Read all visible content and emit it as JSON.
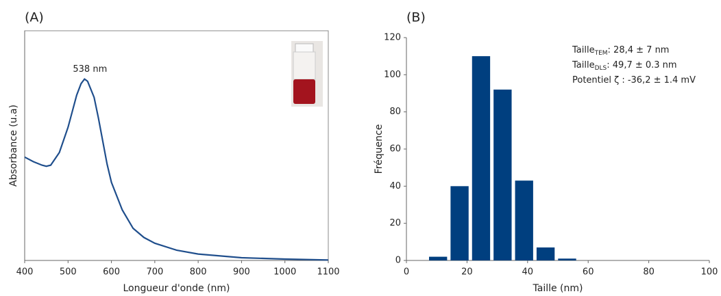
{
  "chart_data": [
    {
      "type": "line",
      "panel_label": "(A)",
      "x_label": "Longueur d'onde (nm)",
      "y_label": "Absorbance (u.a)",
      "annotation": "538 nm",
      "color": "#1f4e8c",
      "x": [
        400,
        420,
        440,
        450,
        460,
        480,
        500,
        510,
        520,
        530,
        538,
        545,
        560,
        570,
        580,
        590,
        600,
        625,
        650,
        675,
        700,
        750,
        800,
        900,
        1000,
        1100
      ],
      "values": [
        0.45,
        0.43,
        0.415,
        0.41,
        0.415,
        0.47,
        0.58,
        0.65,
        0.72,
        0.77,
        0.79,
        0.78,
        0.71,
        0.62,
        0.52,
        0.42,
        0.34,
        0.22,
        0.14,
        0.1,
        0.075,
        0.045,
        0.028,
        0.012,
        0.006,
        0.002
      ],
      "xlim": [
        400,
        1100
      ],
      "xticks": [
        400,
        500,
        600,
        700,
        800,
        900,
        1000,
        1100
      ],
      "ylim": [
        0,
        1
      ]
    },
    {
      "type": "histogram",
      "panel_label": "(B)",
      "x_label": "Taille (nm)",
      "y_label": "Fréquence",
      "color": "#003f7f",
      "bins": [
        6.9,
        14.0,
        21.1,
        28.2,
        35.3,
        42.4,
        49.5,
        56.6
      ],
      "values": [
        2,
        40,
        110,
        92,
        43,
        7,
        1
      ],
      "xlim": [
        0,
        100
      ],
      "xticks": [
        0,
        20,
        40,
        60,
        80,
        100
      ],
      "ylim": [
        0,
        120
      ],
      "yticks": [
        0,
        20,
        40,
        60,
        80,
        100,
        120
      ],
      "annotations": [
        {
          "text": "Taille",
          "sub": "TEM",
          "rest": ": 28,4 ± 7 nm"
        },
        {
          "text": "Taille",
          "sub": "DLS",
          "rest": ": 49,7 ± 0.3 nm"
        },
        {
          "text": "Potentiel ζ : -36,2 ± 1.4 mV"
        }
      ]
    }
  ]
}
